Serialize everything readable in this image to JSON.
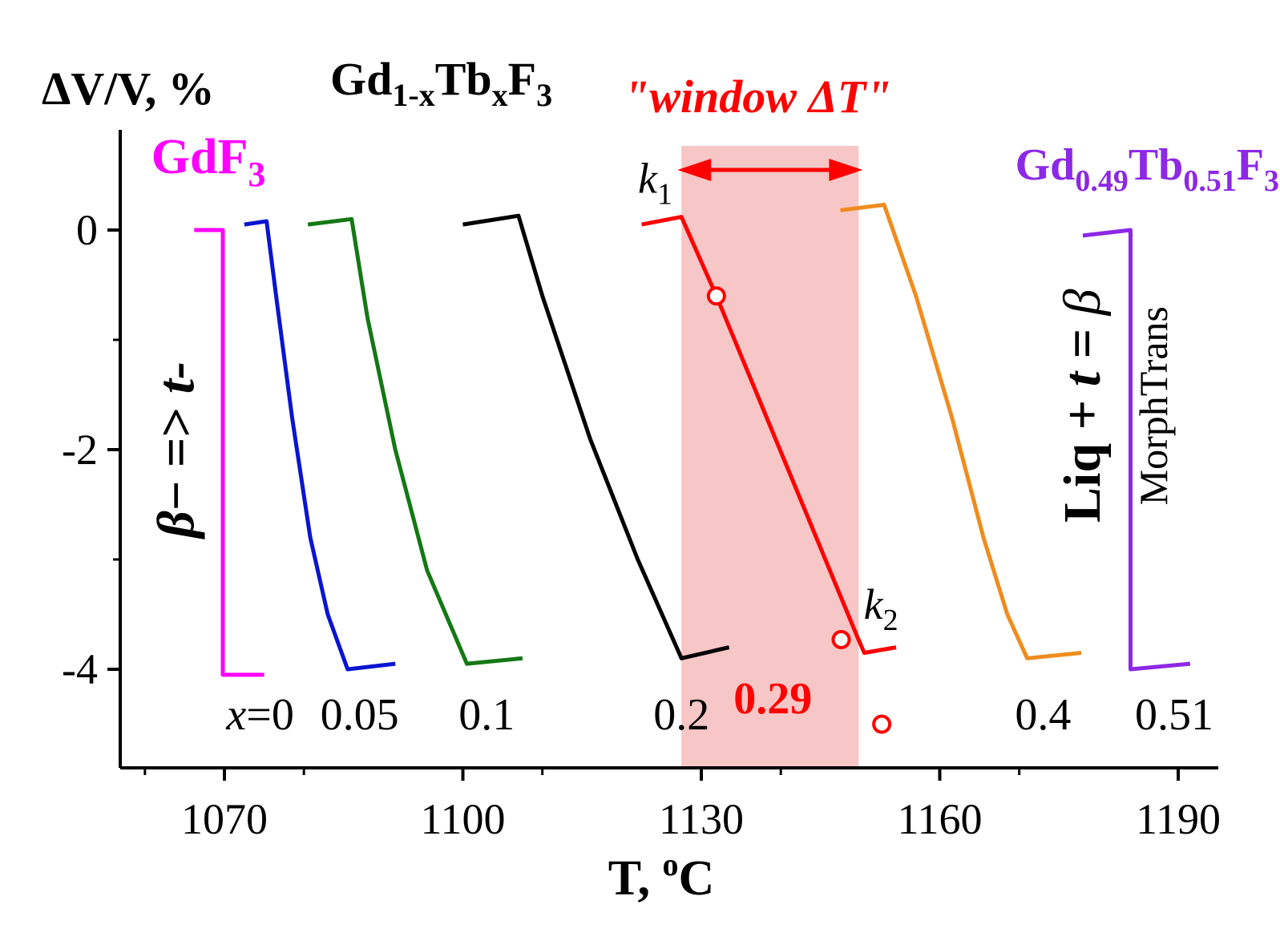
{
  "chart_data": {
    "type": "line",
    "xlabel": "T, °C",
    "ylabel": "ΔV/V, %",
    "title": "Gd1-xTbxF3",
    "xlim": [
      1057,
      1195
    ],
    "ylim": [
      -4.9,
      0.8
    ],
    "x_ticks": [
      1070,
      1100,
      1130,
      1160,
      1190
    ],
    "y_ticks": [
      0,
      -2,
      -4
    ],
    "x_tick_labels": [
      "1070",
      "1100",
      "1130",
      "1160",
      "1190"
    ],
    "y_tick_labels": [
      "0",
      "-2",
      "-4"
    ],
    "window": {
      "x_start": 1127.5,
      "x_end": 1149.8,
      "label": "\"window ΔT\"",
      "color": "#f7c6c6"
    },
    "series": [
      {
        "name": "x=0",
        "label_x": 1074.5,
        "color": "#ff00ff",
        "points": [
          [
            1066.2,
            0.0
          ],
          [
            1069.8,
            0.0
          ],
          [
            1069.8,
            -4.05
          ],
          [
            1075.0,
            -4.05
          ]
        ]
      },
      {
        "name": "0.05",
        "label_x": 1087,
        "color": "#0a14d2",
        "points": [
          [
            1072.5,
            0.05
          ],
          [
            1075.3,
            0.08
          ],
          [
            1076.5,
            -0.6
          ],
          [
            1078.5,
            -1.7
          ],
          [
            1080.8,
            -2.8
          ],
          [
            1083.0,
            -3.5
          ],
          [
            1085.5,
            -4.0
          ],
          [
            1091.5,
            -3.95
          ]
        ]
      },
      {
        "name": "0.1",
        "label_x": 1103,
        "color": "#147814",
        "points": [
          [
            1080.5,
            0.05
          ],
          [
            1086.0,
            0.1
          ],
          [
            1088.0,
            -0.8
          ],
          [
            1091.5,
            -2.0
          ],
          [
            1095.5,
            -3.1
          ],
          [
            1100.5,
            -3.95
          ],
          [
            1107.5,
            -3.9
          ]
        ]
      },
      {
        "name": "0.2",
        "label_x": 1127.5,
        "color": "#000000",
        "points": [
          [
            1100.0,
            0.05
          ],
          [
            1107.0,
            0.13
          ],
          [
            1110.0,
            -0.6
          ],
          [
            1116.0,
            -1.9
          ],
          [
            1122.0,
            -3.0
          ],
          [
            1127.5,
            -3.9
          ],
          [
            1133.5,
            -3.8
          ]
        ]
      },
      {
        "name": "0.29",
        "label_x": 1139,
        "color": "#ff0000",
        "bold": true,
        "points": [
          [
            1122.5,
            0.05
          ],
          [
            1127.5,
            0.12
          ],
          [
            1131.9,
            -0.6
          ],
          [
            1149.6,
            -3.7
          ],
          [
            1150.5,
            -3.85
          ],
          [
            1154.5,
            -3.8
          ]
        ]
      },
      {
        "name": "0.4",
        "label_x": 1173,
        "color": "#f08c1e",
        "points": [
          [
            1147.5,
            0.18
          ],
          [
            1153.0,
            0.23
          ],
          [
            1157.0,
            -0.6
          ],
          [
            1161.5,
            -1.7
          ],
          [
            1165.5,
            -2.8
          ],
          [
            1168.5,
            -3.5
          ],
          [
            1171.0,
            -3.9
          ],
          [
            1177.8,
            -3.85
          ]
        ]
      },
      {
        "name": "0.51",
        "label_x": 1189.5,
        "color": "#8c28e6",
        "points": [
          [
            1178.0,
            -0.05
          ],
          [
            1184.0,
            0.0
          ],
          [
            1184.0,
            -4.0
          ],
          [
            1191.5,
            -3.95
          ]
        ]
      }
    ],
    "open_markers": [
      [
        1131.9,
        -0.6
      ],
      [
        1147.6,
        -3.73
      ],
      [
        1152.7,
        -4.5
      ]
    ],
    "annotations": [
      {
        "text": "k1",
        "x": 1124.2,
        "y": 0.34,
        "style": "k",
        "color": "#000000"
      },
      {
        "text": "k2",
        "x": 1152.6,
        "y": -3.54,
        "style": "k",
        "color": "#000000"
      },
      {
        "text": "GdF3",
        "x": 1060.8,
        "y": 0.52,
        "style": "formula_simple",
        "color": "#ff00ff"
      },
      {
        "text": "Gd0.49Tb0.51F3",
        "x": 1186.1,
        "y": 0.46,
        "style": "formula_full",
        "color": "#8c28e6"
      },
      {
        "text": "β− => t-",
        "x": 1066.1,
        "y": -2.0,
        "style": "vertical_bold",
        "color": "#000000"
      },
      {
        "text": "Liq + t = β",
        "x": 1180.1,
        "y": -1.6,
        "style": "vertical_bold",
        "color": "#000000"
      },
      {
        "text": "MorphTrans",
        "x": 1188.6,
        "y": -1.6,
        "style": "vertical_plain",
        "color": "#000000"
      }
    ]
  }
}
